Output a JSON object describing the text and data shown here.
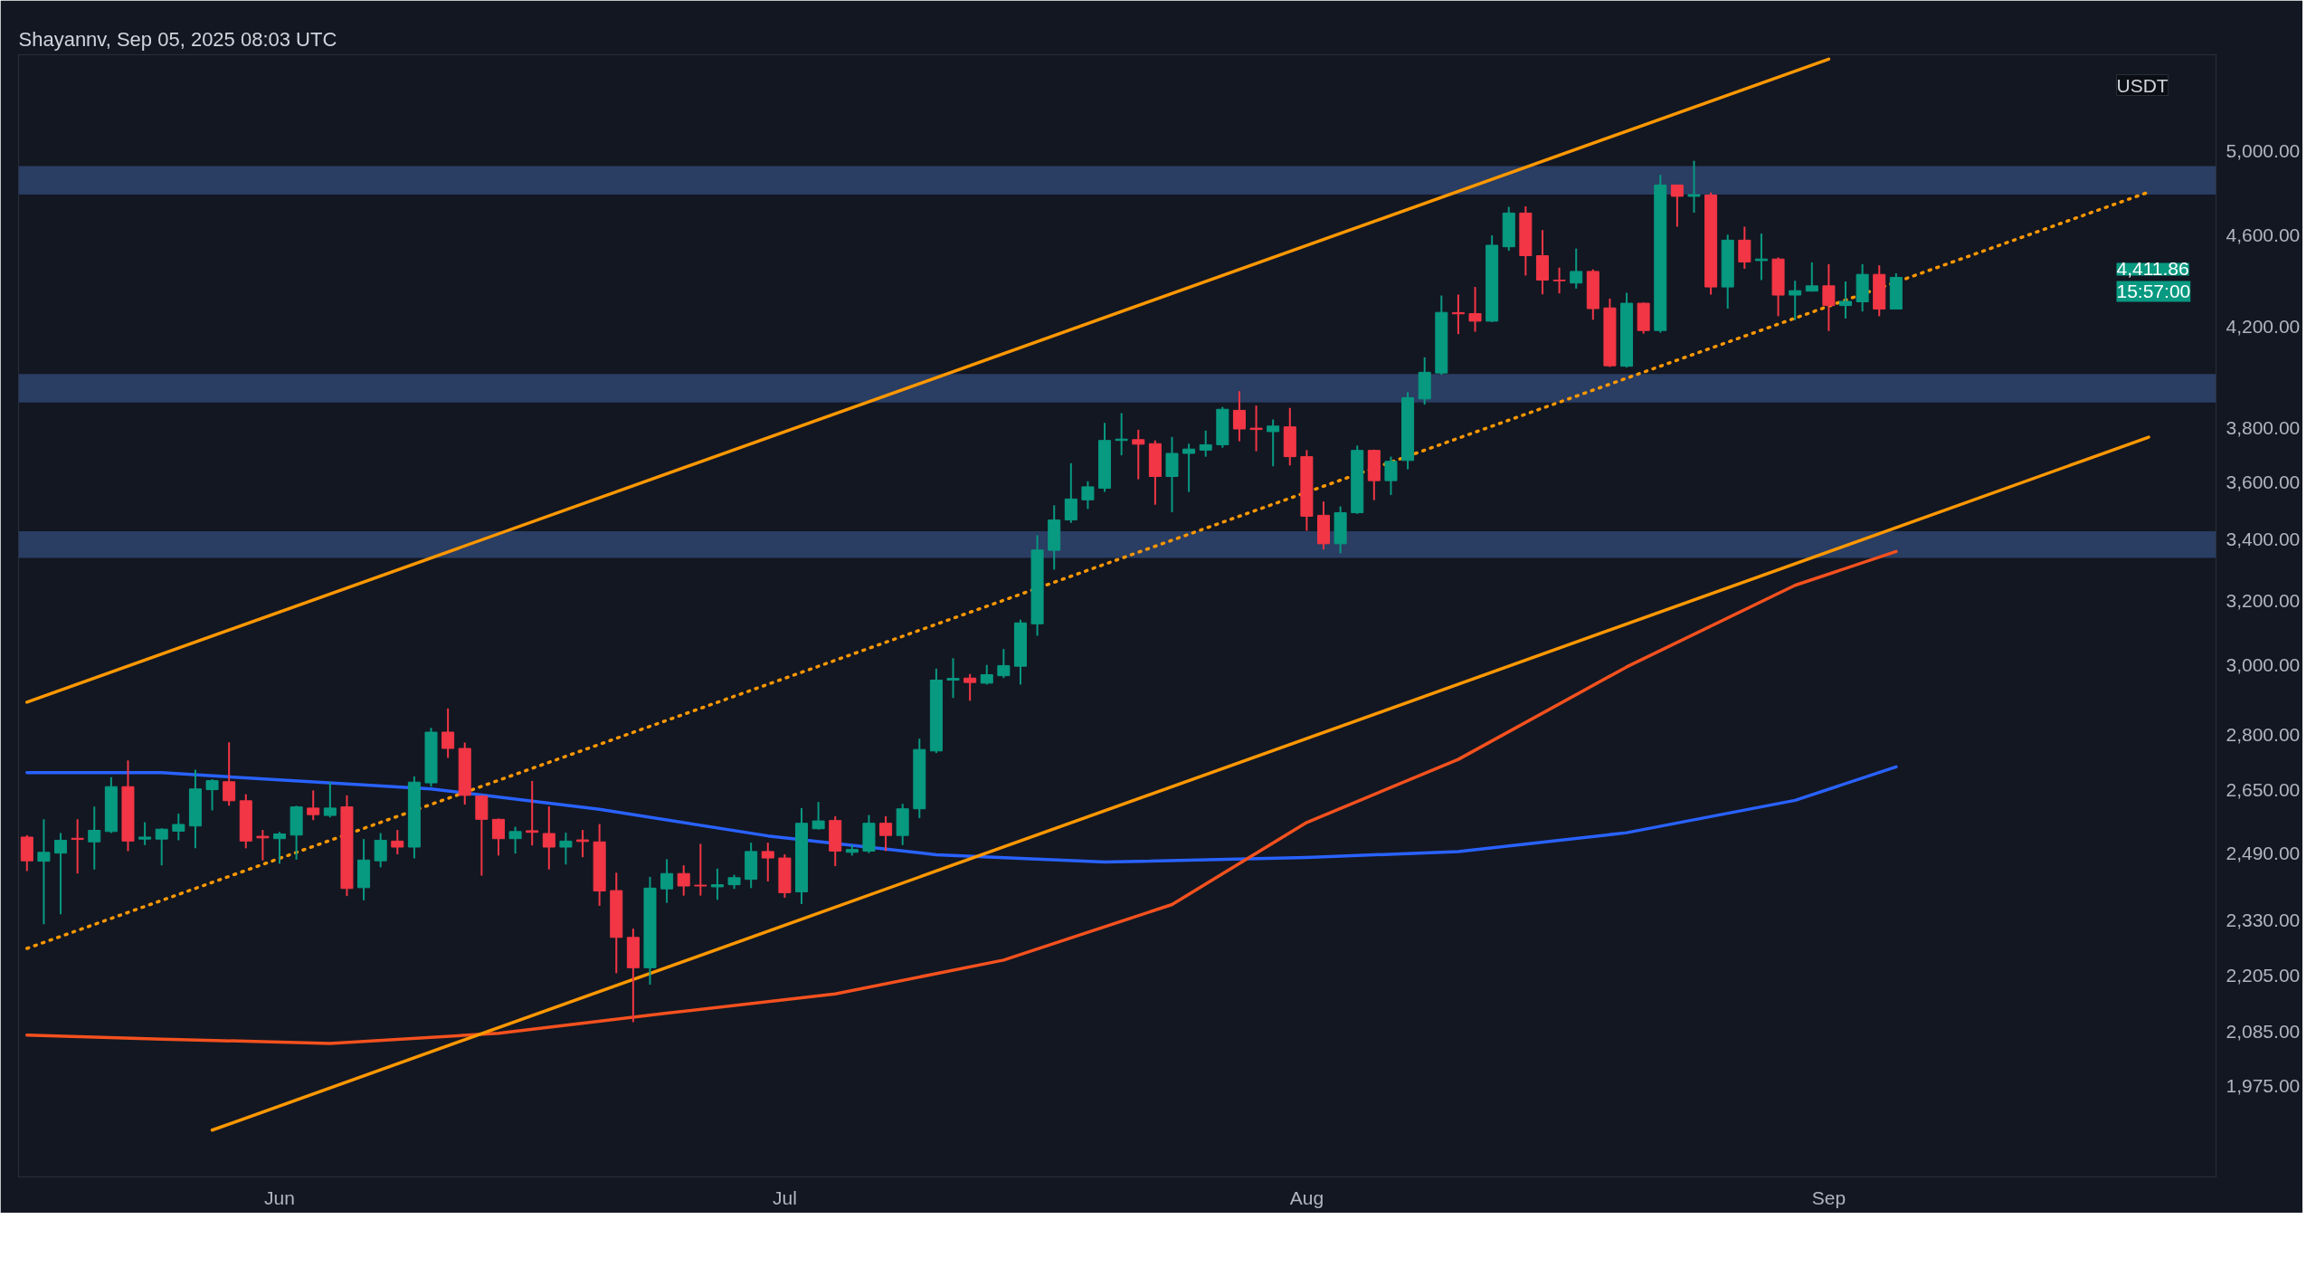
{
  "chart_data": {
    "type": "candlestick",
    "title": "Shayannv, Sep 05, 2025 08:03 UTC",
    "x": [
      "2025-05-17",
      "2025-05-18",
      "2025-05-19",
      "2025-05-20",
      "2025-05-21",
      "2025-05-22",
      "2025-05-23",
      "2025-05-24",
      "2025-05-25",
      "2025-05-26",
      "2025-05-27",
      "2025-05-28",
      "2025-05-29",
      "2025-05-30",
      "2025-05-31",
      "2025-06-01",
      "2025-06-02",
      "2025-06-03",
      "2025-06-04",
      "2025-06-05",
      "2025-06-06",
      "2025-06-07",
      "2025-06-08",
      "2025-06-09",
      "2025-06-10",
      "2025-06-11",
      "2025-06-12",
      "2025-06-13",
      "2025-06-14",
      "2025-06-15",
      "2025-06-16",
      "2025-06-17",
      "2025-06-18",
      "2025-06-19",
      "2025-06-20",
      "2025-06-21",
      "2025-06-22",
      "2025-06-23",
      "2025-06-24",
      "2025-06-25",
      "2025-06-26",
      "2025-06-27",
      "2025-06-28",
      "2025-06-29",
      "2025-06-30",
      "2025-07-01",
      "2025-07-02",
      "2025-07-03",
      "2025-07-04",
      "2025-07-05",
      "2025-07-06",
      "2025-07-07",
      "2025-07-08",
      "2025-07-09",
      "2025-07-10",
      "2025-07-11",
      "2025-07-12",
      "2025-07-13",
      "2025-07-14",
      "2025-07-15",
      "2025-07-16",
      "2025-07-17",
      "2025-07-18",
      "2025-07-19",
      "2025-07-20",
      "2025-07-21",
      "2025-07-22",
      "2025-07-23",
      "2025-07-24",
      "2025-07-25",
      "2025-07-26",
      "2025-07-27",
      "2025-07-28",
      "2025-07-29",
      "2025-07-30",
      "2025-07-31",
      "2025-08-01",
      "2025-08-02",
      "2025-08-03",
      "2025-08-04",
      "2025-08-05",
      "2025-08-06",
      "2025-08-07",
      "2025-08-08",
      "2025-08-09",
      "2025-08-10",
      "2025-08-11",
      "2025-08-12",
      "2025-08-13",
      "2025-08-14",
      "2025-08-15",
      "2025-08-16",
      "2025-08-17",
      "2025-08-18",
      "2025-08-19",
      "2025-08-20",
      "2025-08-21",
      "2025-08-22",
      "2025-08-23",
      "2025-08-24",
      "2025-08-25",
      "2025-08-26",
      "2025-08-27",
      "2025-08-28",
      "2025-08-29",
      "2025-08-30",
      "2025-08-31",
      "2025-09-01",
      "2025-09-02",
      "2025-09-03",
      "2025-09-04",
      "2025-09-05"
    ],
    "ohlc": [
      [
        2530,
        2535,
        2446,
        2471
      ],
      [
        2470,
        2575,
        2320,
        2492
      ],
      [
        2490,
        2540,
        2343,
        2522
      ],
      [
        2527,
        2575,
        2440,
        2524
      ],
      [
        2518,
        2608,
        2450,
        2547
      ],
      [
        2544,
        2685,
        2540,
        2660
      ],
      [
        2660,
        2730,
        2495,
        2520
      ],
      [
        2525,
        2568,
        2510,
        2530
      ],
      [
        2525,
        2552,
        2460,
        2550
      ],
      [
        2545,
        2590,
        2522,
        2562
      ],
      [
        2558,
        2705,
        2502,
        2654
      ],
      [
        2652,
        2680,
        2598,
        2676
      ],
      [
        2673,
        2780,
        2610,
        2623
      ],
      [
        2623,
        2640,
        2502,
        2520
      ],
      [
        2532,
        2548,
        2472,
        2528
      ],
      [
        2526,
        2543,
        2464,
        2538
      ],
      [
        2535,
        2610,
        2474,
        2607
      ],
      [
        2604,
        2650,
        2573,
        2587
      ],
      [
        2585,
        2672,
        2580,
        2604
      ],
      [
        2607,
        2637,
        2386,
        2404
      ],
      [
        2406,
        2525,
        2376,
        2473
      ],
      [
        2471,
        2540,
        2455,
        2522
      ],
      [
        2520,
        2548,
        2487,
        2505
      ],
      [
        2505,
        2687,
        2477,
        2672
      ],
      [
        2670,
        2820,
        2660,
        2808
      ],
      [
        2808,
        2875,
        2737,
        2763
      ],
      [
        2763,
        2779,
        2613,
        2637
      ],
      [
        2635,
        2637,
        2435,
        2575
      ],
      [
        2575,
        2577,
        2484,
        2526
      ],
      [
        2526,
        2556,
        2489,
        2544
      ],
      [
        2546,
        2675,
        2509,
        2542
      ],
      [
        2539,
        2608,
        2450,
        2505
      ],
      [
        2505,
        2541,
        2462,
        2520
      ],
      [
        2523,
        2548,
        2480,
        2519
      ],
      [
        2518,
        2563,
        2363,
        2398
      ],
      [
        2399,
        2442,
        2210,
        2290
      ],
      [
        2290,
        2310,
        2105,
        2222
      ],
      [
        2222,
        2432,
        2185,
        2405
      ],
      [
        2403,
        2475,
        2370,
        2440
      ],
      [
        2440,
        2460,
        2387,
        2410
      ],
      [
        2412,
        2513,
        2387,
        2410
      ],
      [
        2408,
        2452,
        2377,
        2413
      ],
      [
        2413,
        2437,
        2403,
        2430
      ],
      [
        2426,
        2516,
        2405,
        2494
      ],
      [
        2494,
        2516,
        2421,
        2478
      ],
      [
        2478,
        2487,
        2382,
        2394
      ],
      [
        2396,
        2604,
        2367,
        2565
      ],
      [
        2551,
        2620,
        2549,
        2571
      ],
      [
        2572,
        2583,
        2458,
        2495
      ],
      [
        2492,
        2510,
        2484,
        2499
      ],
      [
        2495,
        2586,
        2490,
        2565
      ],
      [
        2565,
        2583,
        2495,
        2534
      ],
      [
        2534,
        2615,
        2510,
        2602
      ],
      [
        2602,
        2790,
        2578,
        2760
      ],
      [
        2756,
        2991,
        2750,
        2957
      ],
      [
        2957,
        3022,
        2905,
        2962
      ],
      [
        2963,
        2975,
        2897,
        2950
      ],
      [
        2948,
        3002,
        2944,
        2973
      ],
      [
        2970,
        3050,
        2963,
        3000
      ],
      [
        2998,
        3140,
        2944,
        3130
      ],
      [
        3127,
        3415,
        3090,
        3365
      ],
      [
        3364,
        3518,
        3300,
        3467
      ],
      [
        3467,
        3668,
        3457,
        3540
      ],
      [
        3537,
        3603,
        3505,
        3583
      ],
      [
        3578,
        3818,
        3565,
        3752
      ],
      [
        3752,
        3855,
        3697,
        3757
      ],
      [
        3755,
        3792,
        3610,
        3738
      ],
      [
        3740,
        3752,
        3520,
        3620
      ],
      [
        3620,
        3765,
        3494,
        3704
      ],
      [
        3704,
        3740,
        3565,
        3720
      ],
      [
        3716,
        3789,
        3692,
        3736
      ],
      [
        3736,
        3879,
        3725,
        3870
      ],
      [
        3866,
        3940,
        3749,
        3795
      ],
      [
        3798,
        3884,
        3712,
        3793
      ],
      [
        3785,
        3831,
        3657,
        3806
      ],
      [
        3803,
        3875,
        3660,
        3692
      ],
      [
        3692,
        3716,
        3430,
        3480
      ],
      [
        3483,
        3531,
        3367,
        3386
      ],
      [
        3386,
        3514,
        3354,
        3492
      ],
      [
        3492,
        3733,
        3488,
        3715
      ],
      [
        3715,
        3718,
        3536,
        3605
      ],
      [
        3605,
        3692,
        3554,
        3675
      ],
      [
        3678,
        3936,
        3646,
        3915
      ],
      [
        3910,
        4075,
        3888,
        4015
      ],
      [
        4012,
        4333,
        4005,
        4261
      ],
      [
        4260,
        4337,
        4170,
        4255
      ],
      [
        4256,
        4370,
        4180,
        4224
      ],
      [
        4224,
        4600,
        4220,
        4555
      ],
      [
        4548,
        4732,
        4530,
        4703
      ],
      [
        4703,
        4735,
        4420,
        4508
      ],
      [
        4508,
        4624,
        4338,
        4400
      ],
      [
        4400,
        4455,
        4342,
        4397
      ],
      [
        4387,
        4540,
        4363,
        4438
      ],
      [
        4438,
        4447,
        4230,
        4277
      ],
      [
        4280,
        4320,
        4036,
        4041
      ],
      [
        4039,
        4345,
        4034,
        4300
      ],
      [
        4300,
        4303,
        4172,
        4185
      ],
      [
        4185,
        4885,
        4176,
        4836
      ],
      [
        4836,
        4838,
        4640,
        4782
      ],
      [
        4782,
        4953,
        4705,
        4790
      ],
      [
        4788,
        4800,
        4337,
        4370
      ],
      [
        4370,
        4603,
        4277,
        4578
      ],
      [
        4578,
        4640,
        4450,
        4480
      ],
      [
        4486,
        4608,
        4400,
        4493
      ],
      [
        4493,
        4500,
        4245,
        4335
      ],
      [
        4335,
        4397,
        4228,
        4354
      ],
      [
        4352,
        4478,
        4350,
        4375
      ],
      [
        4375,
        4470,
        4183,
        4290
      ],
      [
        4290,
        4394,
        4235,
        4308
      ],
      [
        4306,
        4470,
        4265,
        4425
      ],
      [
        4425,
        4465,
        4245,
        4275
      ],
      [
        4275,
        4430,
        4275,
        4411.86
      ]
    ],
    "colors": [
      "#f23645",
      "#089981",
      "#089981",
      "#f23645",
      "#089981",
      "#089981",
      "#f23645",
      "#089981",
      "#089981",
      "#089981",
      "#089981",
      "#089981",
      "#f23645",
      "#f23645",
      "#f23645",
      "#089981",
      "#089981",
      "#f23645",
      "#089981",
      "#f23645",
      "#089981",
      "#089981",
      "#f23645",
      "#089981",
      "#089981",
      "#f23645",
      "#f23645",
      "#f23645",
      "#f23645",
      "#089981",
      "#f23645",
      "#f23645",
      "#089981",
      "#f23645",
      "#f23645",
      "#f23645",
      "#f23645",
      "#089981",
      "#089981",
      "#f23645",
      "#f23645",
      "#089981",
      "#089981",
      "#089981",
      "#f23645",
      "#f23645",
      "#089981",
      "#089981",
      "#f23645",
      "#089981",
      "#089981",
      "#f23645",
      "#089981",
      "#089981",
      "#089981",
      "#089981",
      "#f23645",
      "#089981",
      "#089981",
      "#089981",
      "#089981",
      "#089981",
      "#089981",
      "#089981",
      "#089981",
      "#089981",
      "#f23645",
      "#f23645",
      "#089981",
      "#089981",
      "#089981",
      "#089981",
      "#f23645",
      "#f23645",
      "#089981",
      "#f23645",
      "#f23645",
      "#f23645",
      "#089981",
      "#089981",
      "#f23645",
      "#089981",
      "#089981",
      "#089981",
      "#089981",
      "#f23645",
      "#f23645",
      "#089981",
      "#089981",
      "#f23645",
      "#f23645",
      "#f23645",
      "#089981",
      "#f23645",
      "#f23645",
      "#089981",
      "#f23645",
      "#089981",
      "#f23645",
      "#089981",
      "#f23645",
      "#089981",
      "#f23645",
      "#089981",
      "#f23645",
      "#089981",
      "#089981",
      "#f23645",
      "#089981",
      "#089981",
      "#f23645",
      "#089981"
    ],
    "series": [
      {
        "type": "line",
        "color": "#2962ff",
        "line_style": "solid",
        "x": [
          "2025-05-17",
          "2025-05-25",
          "2025-06-01",
          "2025-06-10",
          "2025-06-20",
          "2025-06-30",
          "2025-07-10",
          "2025-07-20",
          "2025-08-01",
          "2025-08-10",
          "2025-08-20",
          "2025-08-30",
          "2025-09-05"
        ],
        "values": [
          2697,
          2697,
          2678,
          2654,
          2601,
          2533,
          2486,
          2468,
          2479,
          2494,
          2541,
          2624,
          2713
        ]
      },
      {
        "type": "line",
        "color": "#f4511e",
        "line_style": "solid",
        "x": [
          "2025-05-17",
          "2025-05-25",
          "2025-06-04",
          "2025-06-14",
          "2025-06-24",
          "2025-07-04",
          "2025-07-14",
          "2025-07-24",
          "2025-08-01",
          "2025-08-10",
          "2025-08-20",
          "2025-08-30",
          "2025-09-05"
        ],
        "values": [
          2078,
          2070,
          2061,
          2082,
          2124,
          2165,
          2239,
          2366,
          2567,
          2733,
          2996,
          3249,
          3360
        ]
      },
      {
        "type": "line",
        "color": "#ff9800",
        "line_style": "solid",
        "x": [
          "2025-05-17",
          "2025-09-01"
        ],
        "values": [
          2893,
          5480
        ]
      },
      {
        "type": "line",
        "color": "#ff9800",
        "line_style": "solid",
        "x": [
          "2025-05-28",
          "2025-09-20"
        ],
        "values": [
          1891,
          3764
        ]
      },
      {
        "type": "line",
        "color": "#ff9800",
        "line_style": "dotted",
        "x": [
          "2025-05-17",
          "2025-09-20"
        ],
        "values": [
          2265,
          4802
        ]
      }
    ],
    "bands": [
      {
        "axis": "y",
        "from": 4790,
        "to": 4928,
        "color": "#2a3d62"
      },
      {
        "axis": "y",
        "from": 3896,
        "to": 4008,
        "color": "#2a3d62"
      },
      {
        "axis": "y",
        "from": 3339,
        "to": 3428,
        "color": "#2a3d62"
      }
    ],
    "annotations": [
      "USDT",
      "4,411.86",
      "15:57:00"
    ],
    "xlim": [
      "2025-05-16T12:00",
      "2025-09-24"
    ],
    "xticks": [
      {
        "value": "2025-06-01",
        "label": "Jun"
      },
      {
        "value": "2025-07-01",
        "label": "Jul"
      },
      {
        "value": "2025-08-01",
        "label": "Aug"
      },
      {
        "value": "2025-09-01",
        "label": "Sep"
      }
    ],
    "ylim": [
      1805,
      5504
    ],
    "log": true,
    "yticks": [
      {
        "value": 1975,
        "label": "1,975.00"
      },
      {
        "value": 2085,
        "label": "2,085.00"
      },
      {
        "value": 2205,
        "label": "2,205.00"
      },
      {
        "value": 2330,
        "label": "2,330.00"
      },
      {
        "value": 2490,
        "label": "2,490.00"
      },
      {
        "value": 2650,
        "label": "2,650.00"
      },
      {
        "value": 2800,
        "label": "2,800.00"
      },
      {
        "value": 3000,
        "label": "3,000.00"
      },
      {
        "value": 3200,
        "label": "3,200.00"
      },
      {
        "value": 3400,
        "label": "3,400.00"
      },
      {
        "value": 3600,
        "label": "3,600.00"
      },
      {
        "value": 3800,
        "label": "3,800.00"
      },
      {
        "value": 4200,
        "label": "4,200.00"
      },
      {
        "value": 4600,
        "label": "4,600.00"
      },
      {
        "value": 5000,
        "label": "5,000.00"
      }
    ],
    "grid": false
  }
}
